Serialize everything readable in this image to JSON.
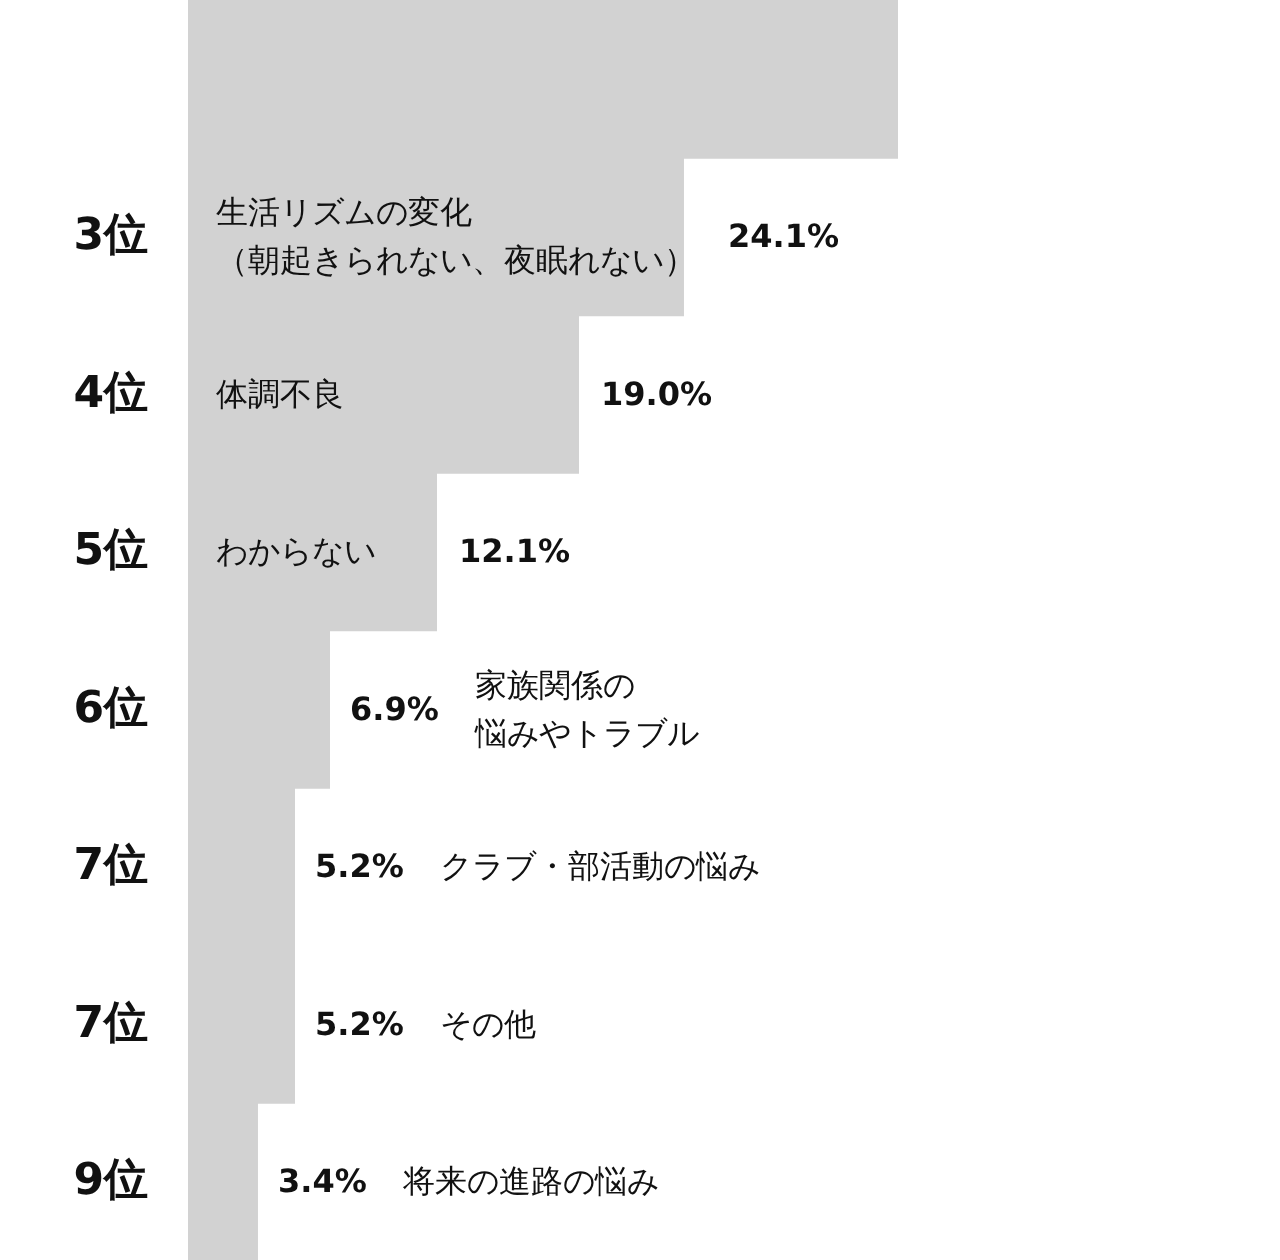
{
  "chart_data": {
    "type": "bar",
    "orientation": "horizontal",
    "categories": [
      null,
      "3位",
      "4位",
      "5位",
      "6位",
      "7位",
      "7位",
      "9位"
    ],
    "values": [
      34.5,
      24.1,
      19.0,
      12.1,
      6.9,
      5.2,
      5.2,
      3.4
    ],
    "value_labels": [
      null,
      "24.1%",
      "19.0%",
      "12.1%",
      "6.9%",
      "5.2%",
      "5.2%",
      "3.4%"
    ],
    "annotations": [
      "生活リズムの変化（朝起きられない、夜眠れない）",
      "体調不良",
      "わからない",
      "家族関係の悩みやトラブル",
      "クラブ・部活動の悩み",
      "その他",
      "将来の進路の悩み"
    ],
    "color": "#d2d2d2"
  }
}
